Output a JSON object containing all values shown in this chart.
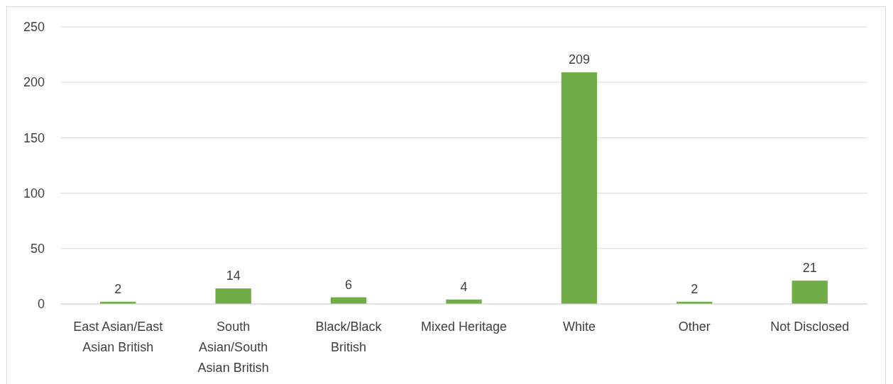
{
  "chart_data": {
    "type": "bar",
    "categories": [
      "East Asian/East Asian British",
      "South Asian/South Asian British",
      "Black/Black British",
      "Mixed Heritage",
      "White",
      "Other",
      "Not Disclosed"
    ],
    "values": [
      2,
      14,
      6,
      4,
      209,
      2,
      21
    ],
    "color": "#70ad47",
    "ylim": [
      0,
      250
    ],
    "yticks": [
      0,
      50,
      100,
      150,
      200,
      250
    ],
    "grid": "y",
    "data_labels": true
  }
}
